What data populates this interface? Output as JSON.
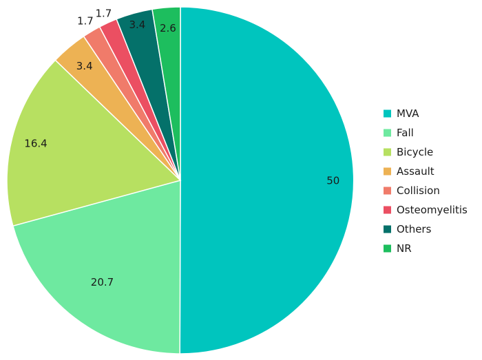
{
  "chart_data": {
    "type": "pie",
    "title": "",
    "categories": [
      "MVA",
      "Fall",
      "Bicycle",
      "Assault",
      "Collision",
      "Osteomyelitis",
      "Others",
      "NR"
    ],
    "values": [
      50,
      20.7,
      16.4,
      3.4,
      1.7,
      1.7,
      3.4,
      2.6
    ],
    "data_labels": [
      "50",
      "20.7",
      "16.4",
      "3.4",
      "1.7",
      "1.7",
      "3.4",
      "2.6"
    ],
    "colors": [
      "#00C5BE",
      "#6EE9A0",
      "#B7E061",
      "#EDB254",
      "#F07B6A",
      "#EB4F62",
      "#04716A",
      "#1DBE5E"
    ],
    "start_angle_deg": 0,
    "direction": "clockwise",
    "legend_position": "right"
  }
}
